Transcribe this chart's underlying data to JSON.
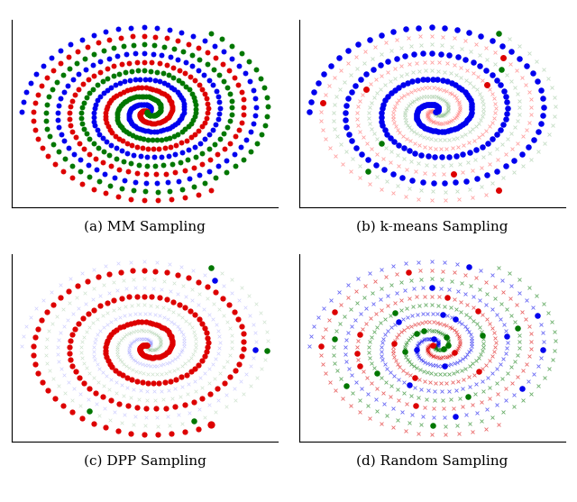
{
  "subplot_titles": [
    "(a) MM Sampling",
    "(b) k-means Sampling",
    "(c) DPP Sampling",
    "(d) Random Sampling"
  ],
  "colors": {
    "blue": "#0000EE",
    "red": "#DD0000",
    "green": "#007700",
    "blue_light": "#8888FF",
    "red_light": "#FF8888",
    "green_light": "#88BB88"
  },
  "figsize": [
    6.4,
    5.57
  ],
  "dpi": 100,
  "n_points": 200,
  "turns": 3.5
}
